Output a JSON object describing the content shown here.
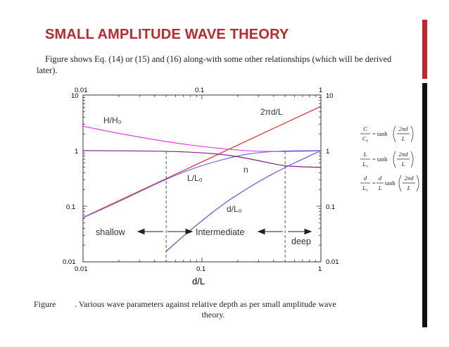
{
  "slide": {
    "title": "SMALL AMPLITUDE WAVE THEORY",
    "intro": "Figure shows Eq. (14) or (15) and (16) along-with some other relationships (which will be derived later).",
    "caption_label": "Figure",
    "caption_text_1": ". Various wave parameters against relative depth as per small amplitude wave",
    "caption_text_2": "theory."
  },
  "accent_colors": {
    "title": "#c0272d",
    "bar_red": "#c0272d",
    "bar_black": "#111111"
  },
  "chart_data": {
    "type": "line",
    "xscale": "log",
    "yscale": "log",
    "xlim": [
      0.01,
      1
    ],
    "ylim": [
      0.01,
      10
    ],
    "xlabel": "d/L",
    "x_ticks_top": [
      "0.01",
      "0.1",
      "1"
    ],
    "x_ticks_bottom": [
      "0.01",
      "0.1",
      "1"
    ],
    "y_ticks_left": [
      "10",
      "1",
      "0.1",
      "0.01"
    ],
    "y_ticks_right": [
      "10",
      "1",
      "0.1",
      "0.01"
    ],
    "series": [
      {
        "name": "2πd/L",
        "color": "#e03030",
        "x": [
          0.01,
          0.02,
          0.05,
          0.1,
          0.2,
          0.5,
          1
        ],
        "y": [
          0.0628,
          0.126,
          0.314,
          0.628,
          1.257,
          3.14,
          6.28
        ]
      },
      {
        "name": "H/H₀",
        "color": "#e040e0",
        "x": [
          0.01,
          0.02,
          0.05,
          0.1,
          0.2,
          0.3,
          0.5,
          0.7,
          1
        ],
        "y": [
          2.75,
          2.03,
          1.45,
          1.18,
          1.02,
          0.97,
          0.96,
          0.97,
          0.99
        ]
      },
      {
        "name": "L/L₀",
        "color": "#7070e0",
        "x": [
          0.01,
          0.02,
          0.05,
          0.1,
          0.2,
          0.3,
          0.5,
          0.7,
          1
        ],
        "y": [
          0.062,
          0.12,
          0.31,
          0.55,
          0.81,
          0.93,
          0.99,
          1.0,
          1.0
        ]
      },
      {
        "name": "n",
        "color": "#802080",
        "x": [
          0.01,
          0.05,
          0.1,
          0.15,
          0.2,
          0.3,
          0.4,
          0.5,
          0.7,
          1
        ],
        "y": [
          1.0,
          0.98,
          0.92,
          0.85,
          0.78,
          0.66,
          0.58,
          0.53,
          0.51,
          0.5
        ]
      },
      {
        "name": "d/L₀",
        "color": "#6050e0",
        "x": [
          0.04,
          0.05,
          0.07,
          0.1,
          0.15,
          0.2,
          0.3,
          0.5,
          0.7,
          1
        ],
        "y": [
          0.0098,
          0.0155,
          0.0293,
          0.055,
          0.108,
          0.163,
          0.28,
          0.5,
          0.7,
          1.0
        ]
      }
    ],
    "labels": {
      "two_pi_d_L": "2πd/L",
      "H_H0": "H/H₀",
      "L_L0": "L/L₀",
      "n": "n",
      "d_L0": "d/L₀",
      "shallow": "shallow",
      "intermediate": "Intermediate",
      "deep": "deep"
    },
    "region_boundaries": [
      0.05,
      0.5
    ]
  },
  "formulas": {
    "f1_lhs_num": "C",
    "f1_lhs_den": "C₀",
    "f1_eq": "= tanh",
    "f1_arg_num": "2πd",
    "f1_arg_den": "L",
    "f2_lhs_num": "L",
    "f2_lhs_den": "L₀",
    "f2_eq": "= tanh",
    "f2_arg_num": "2πd",
    "f2_arg_den": "L",
    "f3_lhs_num": "d",
    "f3_lhs_den": "L₀",
    "f3_eq_a": "=",
    "f3_mid_num": "d",
    "f3_mid_den": "L",
    "f3_eq_b": "tanh",
    "f3_arg_num": "2πd",
    "f3_arg_den": "L"
  }
}
